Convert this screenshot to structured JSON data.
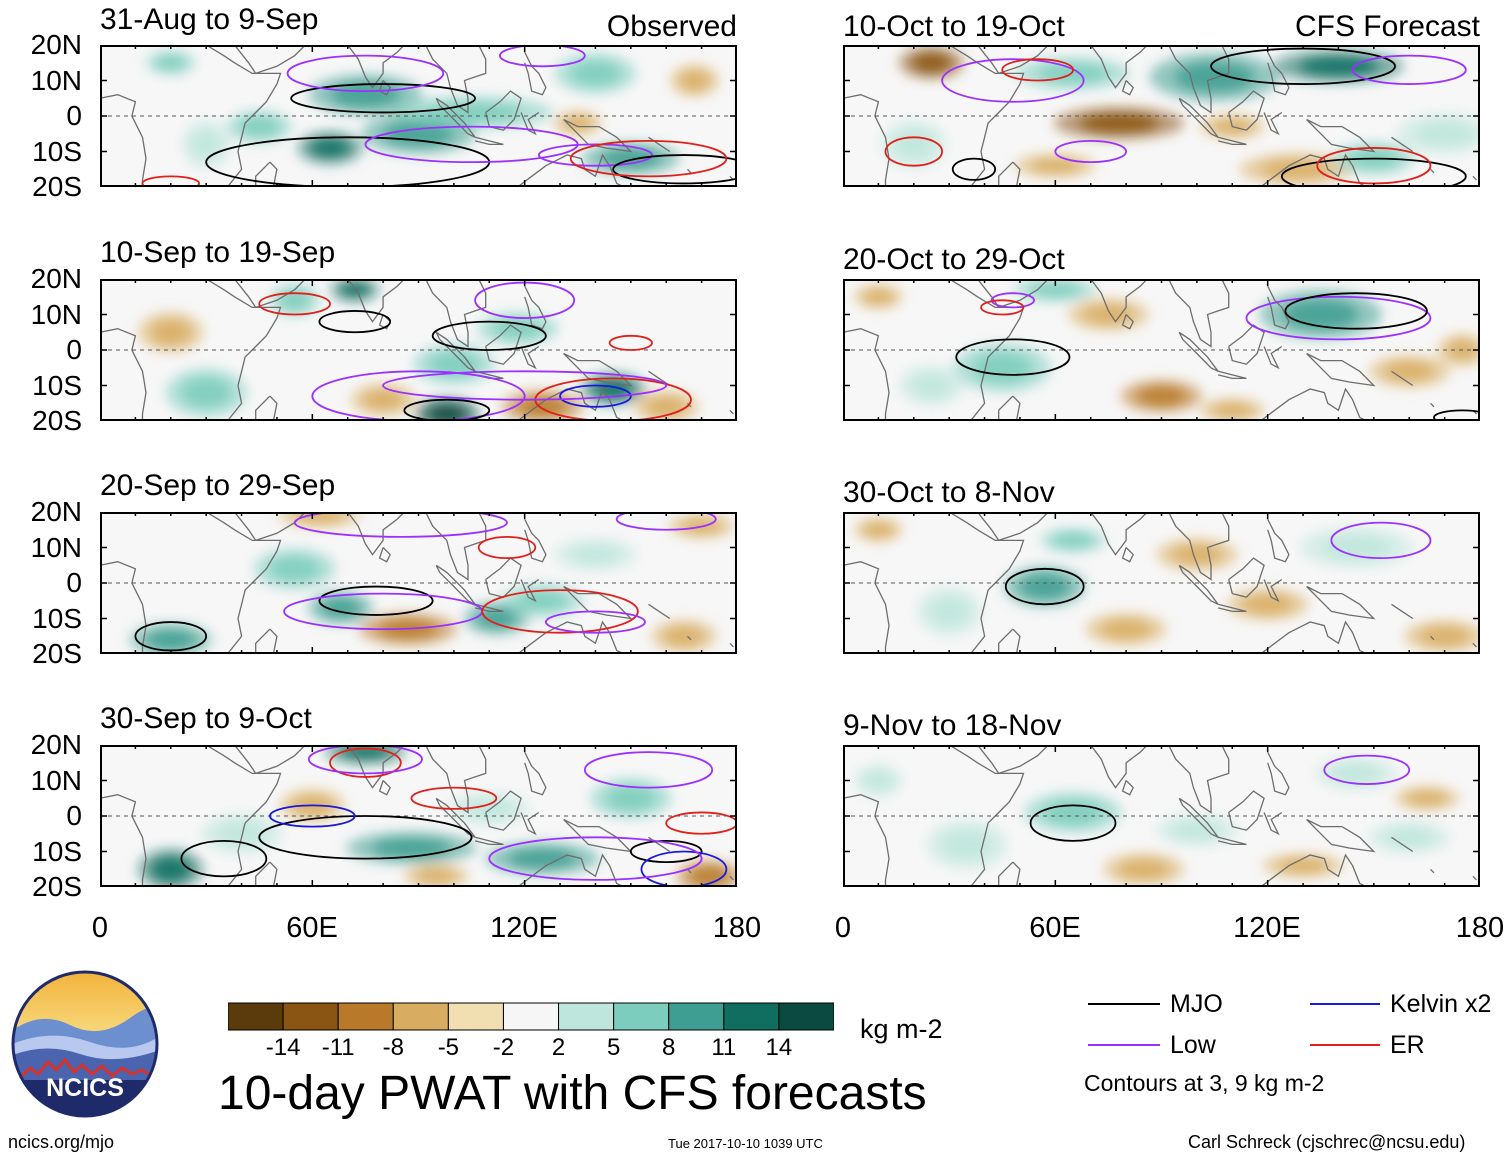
{
  "header": {
    "observed_label": "Observed",
    "forecast_label": "CFS Forecast"
  },
  "panels": [
    {
      "id": "obs1",
      "column": "observed",
      "title": "31-Aug to 9-Sep"
    },
    {
      "id": "obs2",
      "column": "observed",
      "title": "10-Sep to 19-Sep"
    },
    {
      "id": "obs3",
      "column": "observed",
      "title": "20-Sep to 29-Sep"
    },
    {
      "id": "obs4",
      "column": "observed",
      "title": "30-Sep to 9-Oct"
    },
    {
      "id": "fc1",
      "column": "forecast",
      "title": "10-Oct to 19-Oct"
    },
    {
      "id": "fc2",
      "column": "forecast",
      "title": "20-Oct to 29-Oct"
    },
    {
      "id": "fc3",
      "column": "forecast",
      "title": "30-Oct to 8-Nov"
    },
    {
      "id": "fc4",
      "column": "forecast",
      "title": "9-Nov to 18-Nov"
    }
  ],
  "axes": {
    "y_ticks": [
      "20N",
      "10N",
      "0",
      "10S",
      "20S"
    ],
    "x_ticks": [
      "0",
      "60E",
      "120E",
      "180"
    ]
  },
  "chart_data": {
    "type": "heatmap",
    "title": "10-day PWAT with CFS forecasts",
    "variable": "precipitable water anomaly",
    "units": "kg m-2",
    "x_range_deg_lon": [
      0,
      180
    ],
    "y_range_deg_lat": [
      -20,
      20
    ],
    "colorbar_levels": [
      -14,
      -11,
      -8,
      -5,
      -2,
      2,
      5,
      8,
      11,
      14
    ],
    "colorbar_labels": [
      "-14",
      "-11",
      "-8",
      "-5",
      "-2",
      "2",
      "5",
      "8",
      "11",
      "14"
    ],
    "colorbar_colors": [
      "#5b3a0c",
      "#8a5412",
      "#b9792a",
      "#d8ad62",
      "#f1dfb2",
      "#f6f6f6",
      "#bfe6dc",
      "#7ccdbd",
      "#3e9e91",
      "#106e60",
      "#0b4a40"
    ],
    "contour_levels_label": "Contours at 3, 9 kg m-2",
    "contour_series": [
      {
        "name": "MJO",
        "color": "#000000"
      },
      {
        "name": "Kelvin x2",
        "color": "#1a1adc"
      },
      {
        "name": "Low",
        "color": "#9b30ff"
      },
      {
        "name": "ER",
        "color": "#e0201a"
      }
    ]
  },
  "colorbar": {
    "units": "kg m-2"
  },
  "legend": {
    "mjo": "MJO",
    "kelvin": "Kelvin x2",
    "low": "Low",
    "er": "ER",
    "contours": "Contours at 3, 9 kg m-2"
  },
  "logo": {
    "text": "NCICS"
  },
  "footer": {
    "url": "ncics.org/mjo",
    "timestamp": "Tue 2017-10-10 1039 UTC",
    "credit": "Carl Schreck (cjschrec@ncsu.edu)"
  }
}
